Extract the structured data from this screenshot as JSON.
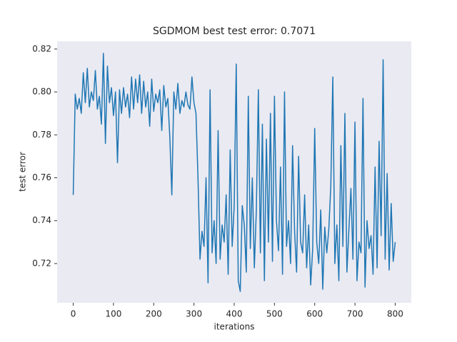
{
  "chart_data": {
    "type": "line",
    "title": "SGDMOM best test error: 0.7071",
    "x_label": "iterations",
    "y_label": "test error",
    "series": [
      {
        "name": "test error",
        "color": "#1f77b4",
        "x": [
          0,
          5,
          10,
          15,
          20,
          25,
          30,
          35,
          40,
          45,
          50,
          55,
          60,
          65,
          70,
          75,
          80,
          85,
          90,
          95,
          100,
          105,
          110,
          115,
          120,
          125,
          130,
          135,
          140,
          145,
          150,
          155,
          160,
          165,
          170,
          175,
          180,
          185,
          190,
          195,
          200,
          205,
          210,
          215,
          220,
          225,
          230,
          235,
          240,
          245,
          250,
          255,
          260,
          265,
          270,
          275,
          280,
          285,
          290,
          295,
          300,
          305,
          310,
          315,
          320,
          325,
          330,
          335,
          340,
          345,
          350,
          355,
          360,
          365,
          370,
          375,
          380,
          385,
          390,
          395,
          400,
          405,
          410,
          415,
          420,
          425,
          430,
          435,
          440,
          445,
          450,
          455,
          460,
          465,
          470,
          475,
          480,
          485,
          490,
          495,
          500,
          505,
          510,
          515,
          520,
          525,
          530,
          535,
          540,
          545,
          550,
          555,
          560,
          565,
          570,
          575,
          580,
          585,
          590,
          595,
          600,
          605,
          610,
          615,
          620,
          625,
          630,
          635,
          640,
          645,
          650,
          655,
          660,
          665,
          670,
          675,
          680,
          685,
          690,
          695,
          700,
          705,
          710,
          715,
          720,
          725,
          730,
          735,
          740,
          745,
          750,
          755,
          760,
          765,
          770,
          775,
          780,
          785,
          790,
          795,
          800
        ],
        "values": [
          0.752,
          0.799,
          0.792,
          0.797,
          0.79,
          0.809,
          0.795,
          0.811,
          0.793,
          0.8,
          0.796,
          0.81,
          0.792,
          0.798,
          0.785,
          0.818,
          0.776,
          0.812,
          0.795,
          0.802,
          0.789,
          0.8,
          0.767,
          0.801,
          0.79,
          0.802,
          0.793,
          0.799,
          0.788,
          0.807,
          0.792,
          0.806,
          0.795,
          0.808,
          0.79,
          0.805,
          0.793,
          0.8,
          0.784,
          0.806,
          0.791,
          0.799,
          0.795,
          0.801,
          0.782,
          0.803,
          0.793,
          0.797,
          0.779,
          0.752,
          0.8,
          0.792,
          0.804,
          0.79,
          0.796,
          0.793,
          0.8,
          0.794,
          0.792,
          0.807,
          0.795,
          0.79,
          0.76,
          0.722,
          0.735,
          0.728,
          0.76,
          0.711,
          0.801,
          0.725,
          0.74,
          0.72,
          0.782,
          0.722,
          0.738,
          0.73,
          0.752,
          0.715,
          0.773,
          0.728,
          0.747,
          0.813,
          0.712,
          0.707,
          0.747,
          0.738,
          0.716,
          0.798,
          0.727,
          0.76,
          0.718,
          0.745,
          0.801,
          0.725,
          0.785,
          0.712,
          0.778,
          0.73,
          0.79,
          0.721,
          0.798,
          0.74,
          0.726,
          0.765,
          0.715,
          0.8,
          0.728,
          0.74,
          0.72,
          0.775,
          0.735,
          0.716,
          0.77,
          0.73,
          0.725,
          0.752,
          0.718,
          0.738,
          0.71,
          0.727,
          0.783,
          0.73,
          0.72,
          0.745,
          0.708,
          0.737,
          0.725,
          0.736,
          0.756,
          0.807,
          0.72,
          0.738,
          0.712,
          0.775,
          0.728,
          0.79,
          0.716,
          0.736,
          0.755,
          0.722,
          0.786,
          0.712,
          0.73,
          0.725,
          0.797,
          0.709,
          0.74,
          0.727,
          0.733,
          0.715,
          0.765,
          0.718,
          0.777,
          0.733,
          0.815,
          0.722,
          0.762,
          0.717,
          0.748,
          0.721,
          0.73
        ]
      }
    ],
    "xlim": [
      -40,
      840
    ],
    "ylim": [
      0.7017,
      0.8236
    ],
    "xticks": [
      0,
      100,
      200,
      300,
      400,
      500,
      600,
      700,
      800
    ],
    "yticks": [
      0.72,
      0.74,
      0.76,
      0.78,
      {
        "value": 0.8,
        "label": "0.80"
      },
      0.82
    ],
    "grid": false
  }
}
